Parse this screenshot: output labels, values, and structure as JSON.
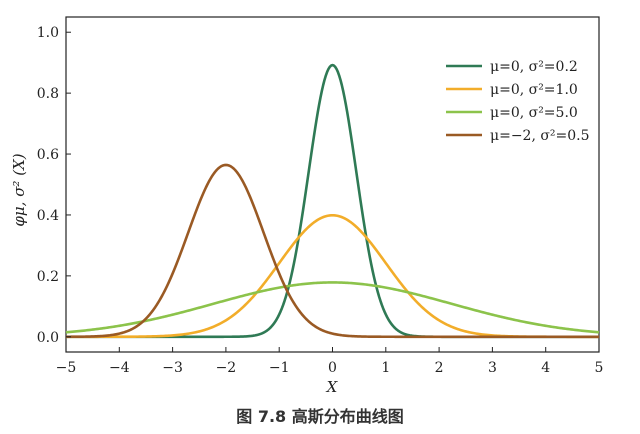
{
  "chart_data": {
    "type": "line",
    "xlabel": "X",
    "ylabel": "φμ, σ² (X)",
    "xlim": [
      -5,
      5
    ],
    "ylim": [
      -0.05,
      1.05
    ],
    "xticks": [
      -5,
      -4,
      -3,
      -2,
      -1,
      0,
      1,
      2,
      3,
      4,
      5
    ],
    "xtick_labels": [
      "−5",
      "−4",
      "−3",
      "−2",
      "−1",
      "0",
      "1",
      "2",
      "3",
      "4",
      "5"
    ],
    "yticks": [
      0.0,
      0.2,
      0.4,
      0.6,
      0.8,
      1.0
    ],
    "ytick_labels": [
      "0.0",
      "0.2",
      "0.4",
      "0.6",
      "0.8",
      "1.0"
    ],
    "grid": false,
    "legend_position": "top-right",
    "series": [
      {
        "name": "μ=0, σ²=0.2",
        "mu": 0,
        "var": 0.2,
        "color": "#2f7a55"
      },
      {
        "name": "μ=0, σ²=1.0",
        "mu": 0,
        "var": 1.0,
        "color": "#f2ad2a"
      },
      {
        "name": "μ=0, σ²=5.0",
        "mu": 0,
        "var": 5.0,
        "color": "#8cc34b"
      },
      {
        "name": "μ=−2, σ²=0.5",
        "mu": -2,
        "var": 0.5,
        "color": "#9a5a24"
      }
    ]
  },
  "caption": "图 7.8    高斯分布曲线图"
}
